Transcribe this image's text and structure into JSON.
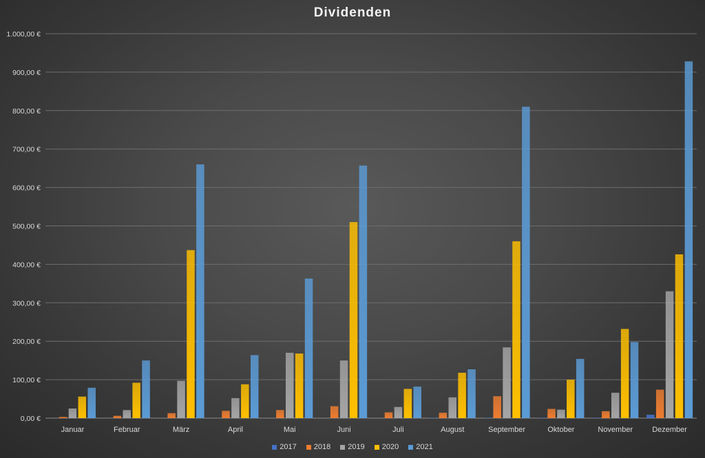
{
  "chart_data": {
    "type": "bar",
    "title": "Dividenden",
    "xlabel": "",
    "ylabel": "",
    "ylim": [
      0,
      1000
    ],
    "yticks": [
      0,
      100,
      200,
      300,
      400,
      500,
      600,
      700,
      800,
      900,
      1000
    ],
    "ytick_labels": [
      "0,00 €",
      "100,00 €",
      "200,00 €",
      "300,00 €",
      "400,00 €",
      "500,00 €",
      "600,00 €",
      "700,00 €",
      "800,00 €",
      "900,00 €",
      "1.000,00 €"
    ],
    "grid": true,
    "legend_position": "bottom",
    "categories": [
      "Januar",
      "Februar",
      "März",
      "April",
      "Mai",
      "Juni",
      "Juli",
      "August",
      "September",
      "Oktober",
      "November",
      "Dezember"
    ],
    "series": [
      {
        "name": "2017",
        "color": "#4472c4",
        "values": [
          0,
          0,
          0,
          0,
          0,
          0,
          0,
          1,
          1,
          1,
          1,
          9
        ]
      },
      {
        "name": "2018",
        "color": "#ed7d31",
        "values": [
          3,
          6,
          13,
          19,
          21,
          31,
          15,
          14,
          57,
          24,
          18,
          74
        ]
      },
      {
        "name": "2019",
        "color": "#a5a5a5",
        "values": [
          25,
          21,
          97,
          52,
          170,
          150,
          29,
          54,
          184,
          22,
          66,
          330
        ]
      },
      {
        "name": "2020",
        "color": "#ffc000",
        "values": [
          56,
          92,
          437,
          88,
          168,
          510,
          76,
          118,
          460,
          100,
          232,
          426
        ]
      },
      {
        "name": "2021",
        "color": "#5b9bd5",
        "values": [
          79,
          150,
          660,
          164,
          363,
          657,
          82,
          127,
          810,
          154,
          198,
          928
        ]
      }
    ]
  }
}
